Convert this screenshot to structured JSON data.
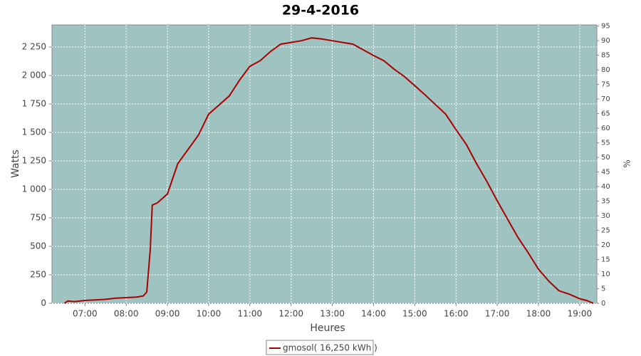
{
  "chart_data": {
    "type": "line",
    "title": "29-4-2016",
    "xlabel": "Heures",
    "ylabel": "Watts",
    "y2label": "%",
    "x": [
      "06:30",
      "06:35",
      "06:45",
      "07:00",
      "07:15",
      "07:30",
      "07:45",
      "08:00",
      "08:15",
      "08:25",
      "08:30",
      "08:35",
      "08:38",
      "08:45",
      "09:00",
      "09:15",
      "09:30",
      "09:45",
      "10:00",
      "10:15",
      "10:30",
      "10:45",
      "11:00",
      "11:15",
      "11:30",
      "11:45",
      "12:00",
      "12:15",
      "12:30",
      "12:45",
      "13:00",
      "13:15",
      "13:30",
      "13:45",
      "14:00",
      "14:15",
      "14:30",
      "14:45",
      "15:00",
      "15:15",
      "15:30",
      "15:45",
      "16:00",
      "16:15",
      "16:30",
      "16:45",
      "17:00",
      "17:15",
      "17:30",
      "17:45",
      "18:00",
      "18:15",
      "18:30",
      "18:45",
      "19:00",
      "19:10",
      "19:20"
    ],
    "series": [
      {
        "name": "gmosol( 16,250 kWh )",
        "color": "#aa0000",
        "values": [
          0,
          20,
          15,
          25,
          30,
          35,
          45,
          50,
          55,
          65,
          100,
          475,
          862,
          880,
          960,
          1225,
          1350,
          1475,
          1660,
          1740,
          1820,
          1960,
          2080,
          2130,
          2210,
          2275,
          2290,
          2305,
          2330,
          2320,
          2305,
          2290,
          2275,
          2225,
          2175,
          2130,
          2055,
          1990,
          1910,
          1830,
          1745,
          1660,
          1525,
          1395,
          1225,
          1070,
          900,
          740,
          580,
          445,
          300,
          195,
          110,
          80,
          40,
          25,
          0
        ]
      }
    ],
    "xlim": [
      "06:12",
      "19:25"
    ],
    "xticks": [
      "07:00",
      "08:00",
      "09:00",
      "10:00",
      "11:00",
      "12:00",
      "13:00",
      "14:00",
      "15:00",
      "16:00",
      "17:00",
      "18:00",
      "19:00"
    ],
    "ylim": [
      0,
      2444
    ],
    "yticks": [
      0,
      250,
      500,
      750,
      {
        "value": 1000,
        "label": "1 000"
      },
      {
        "value": 1250,
        "label": "1 250"
      },
      {
        "value": 1500,
        "label": "1 500"
      },
      {
        "value": 1750,
        "label": "1 750"
      },
      {
        "value": 2000,
        "label": "2 000"
      },
      {
        "value": 2250,
        "label": "2 250"
      }
    ],
    "y2lim": [
      0,
      95.4
    ],
    "y2ticks": [
      0,
      5,
      10,
      15,
      20,
      25,
      30,
      35,
      40,
      45,
      50,
      55,
      60,
      65,
      70,
      75,
      80,
      85,
      90,
      95
    ],
    "grid": true,
    "legend": "bottom"
  }
}
